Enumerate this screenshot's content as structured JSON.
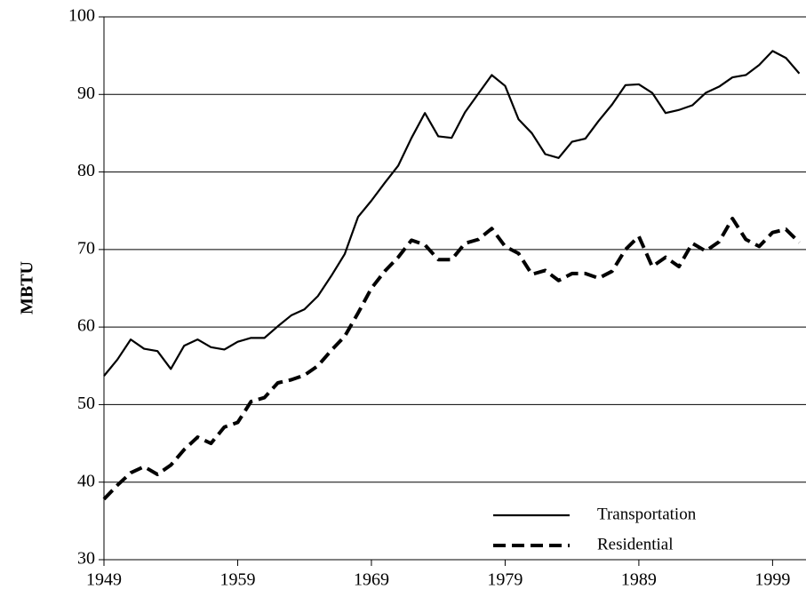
{
  "chart_data": {
    "type": "line",
    "y_label": "MBTU",
    "x": [
      1949,
      1950,
      1951,
      1952,
      1953,
      1954,
      1955,
      1956,
      1957,
      1958,
      1959,
      1960,
      1961,
      1962,
      1963,
      1964,
      1965,
      1966,
      1967,
      1968,
      1969,
      1970,
      1971,
      1972,
      1973,
      1974,
      1975,
      1976,
      1977,
      1978,
      1979,
      1980,
      1981,
      1982,
      1983,
      1984,
      1985,
      1986,
      1987,
      1988,
      1989,
      1990,
      1991,
      1992,
      1993,
      1994,
      1995,
      1996,
      1997,
      1998,
      1999,
      2000,
      2001
    ],
    "series": [
      {
        "name": "Transportation",
        "color": "#000000",
        "linestyle": "solid",
        "values": [
          53.7,
          55.8,
          58.4,
          57.2,
          56.9,
          54.6,
          57.6,
          58.4,
          57.4,
          57.1,
          58.1,
          58.6,
          58.6,
          60.1,
          61.5,
          62.3,
          64.0,
          66.6,
          69.4,
          74.2,
          76.3,
          78.6,
          80.8,
          84.4,
          87.6,
          84.6,
          84.4,
          87.7,
          90.1,
          92.5,
          91.1,
          86.8,
          85.0,
          82.3,
          81.8,
          83.9,
          84.3,
          86.6,
          88.7,
          91.2,
          91.3,
          90.2,
          87.6,
          88.0,
          88.6,
          90.2,
          91.0,
          92.2,
          92.5,
          93.8,
          95.6,
          94.7,
          92.7
        ]
      },
      {
        "name": "Residential",
        "color": "#000000",
        "linestyle": "dashed",
        "values": [
          37.8,
          39.6,
          41.2,
          42.0,
          41.0,
          42.2,
          44.2,
          45.8,
          45.0,
          47.1,
          47.7,
          50.4,
          50.9,
          52.8,
          53.2,
          53.8,
          55.0,
          57.0,
          58.8,
          61.8,
          65.0,
          67.2,
          69.0,
          71.2,
          70.6,
          68.7,
          68.7,
          70.8,
          71.3,
          72.7,
          70.4,
          69.5,
          66.8,
          67.3,
          66.0,
          66.9,
          66.9,
          66.3,
          67.2,
          70.0,
          71.7,
          67.8,
          69.0,
          67.8,
          70.8,
          69.8,
          71.0,
          74.0,
          71.3,
          70.4,
          72.2,
          72.6,
          70.9
        ]
      }
    ],
    "xlim": [
      1949,
      2001.5
    ],
    "xticks": [
      1949,
      1959,
      1969,
      1979,
      1989,
      1999
    ],
    "ylim": [
      30,
      100
    ],
    "yticks": [
      30,
      40,
      50,
      60,
      70,
      80,
      90,
      100
    ],
    "grid": true,
    "legend": "lower right"
  }
}
